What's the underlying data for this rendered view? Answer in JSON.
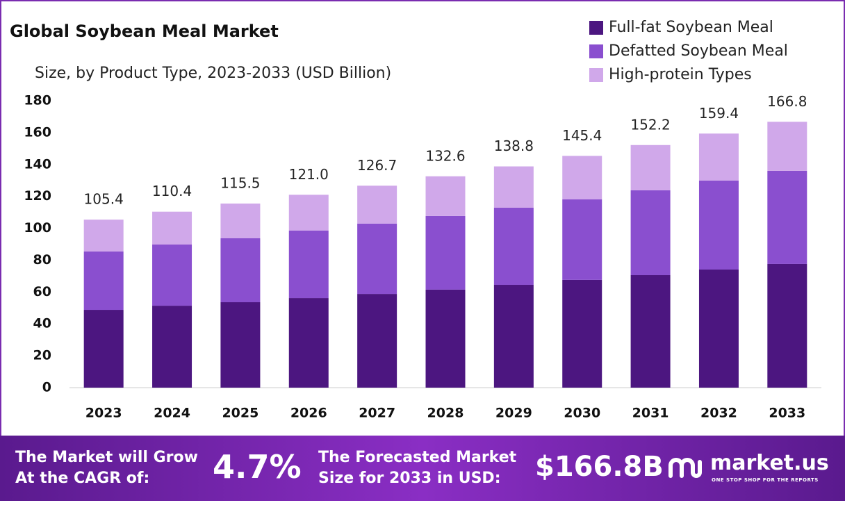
{
  "chart_data": {
    "type": "stacked_bar",
    "title": "Global Soybean Meal Market",
    "subtitle": "Size, by Product Type, 2023-2033 (USD Billion)",
    "categories": [
      "2023",
      "2024",
      "2025",
      "2026",
      "2027",
      "2028",
      "2029",
      "2030",
      "2031",
      "2032",
      "2033"
    ],
    "series": [
      {
        "name": "Full-fat Soybean Meal",
        "color": "#4c1680",
        "values": [
          48.8,
          51.4,
          53.6,
          56.2,
          58.8,
          61.5,
          64.5,
          67.6,
          70.6,
          74.1,
          77.6
        ]
      },
      {
        "name": "Defatted Soybean Meal",
        "color": "#8a4fcf",
        "values": [
          36.6,
          38.4,
          40.1,
          42.3,
          44.1,
          46.2,
          48.4,
          50.5,
          53.2,
          55.8,
          58.4
        ]
      },
      {
        "name": "High-protein Types",
        "color": "#d0a8ea",
        "values": [
          20.0,
          20.6,
          21.8,
          22.5,
          23.8,
          24.9,
          25.9,
          27.3,
          28.4,
          29.5,
          30.8
        ]
      }
    ],
    "totals": [
      105.4,
      110.4,
      115.5,
      121.0,
      126.7,
      132.6,
      138.8,
      145.4,
      152.2,
      159.4,
      166.8
    ],
    "total_labels": [
      "105.4",
      "110.4",
      "115.5",
      "121.0",
      "126.7",
      "132.6",
      "138.8",
      "145.4",
      "152.2",
      "159.4",
      "166.8"
    ],
    "ylim": [
      0,
      180
    ],
    "yticks": [
      0,
      20,
      40,
      60,
      80,
      100,
      120,
      140,
      160,
      180
    ],
    "grid": false,
    "legend": "top-right"
  },
  "footer": {
    "cagr_text": [
      "The Market will Grow",
      "At the CAGR of:"
    ],
    "cagr_value": "4.7%",
    "forecast_text": [
      "The Forecasted Market",
      "Size for 2033 in USD:"
    ],
    "forecast_value": "$166.8B",
    "brand": "market.us",
    "tagline": "ONE STOP SHOP FOR THE REPORTS"
  }
}
